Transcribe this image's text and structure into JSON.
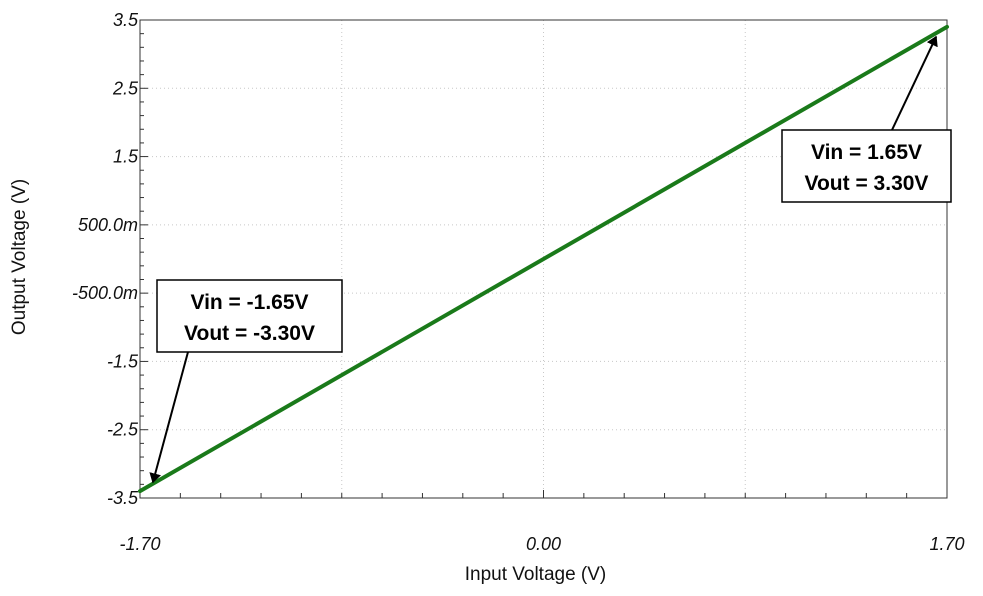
{
  "chart_data": {
    "type": "line",
    "title": "",
    "xlabel": "Input Voltage (V)",
    "ylabel": "Output Voltage (V)",
    "xlim": [
      -1.7,
      1.7
    ],
    "ylim": [
      -3.5,
      3.5
    ],
    "x_tick_values": [
      -1.7,
      0.0,
      1.7
    ],
    "x_tick_labels": [
      "-1.70",
      "0.00",
      "1.70"
    ],
    "y_tick_values": [
      3.5,
      2.5,
      1.5,
      0.5,
      -0.5,
      -1.5,
      -2.5,
      -3.5
    ],
    "y_tick_labels": [
      "3.5",
      "2.5",
      "1.5",
      "500.0m",
      "-500.0m",
      "-1.5",
      "-2.5",
      "-3.5"
    ],
    "grid": true,
    "series": [
      {
        "color": "#1a7a1a",
        "x": [
          -1.7,
          1.7
        ],
        "y": [
          -3.4,
          3.4
        ]
      }
    ],
    "annotations": [
      {
        "id": "neg",
        "lines": [
          "Vin = -1.65V",
          "Vout = -3.30V"
        ],
        "x": -1.65,
        "y": -3.3
      },
      {
        "id": "pos",
        "lines": [
          "Vin = 1.65V",
          "Vout = 3.30V"
        ],
        "x": 1.65,
        "y": 3.3
      }
    ]
  }
}
